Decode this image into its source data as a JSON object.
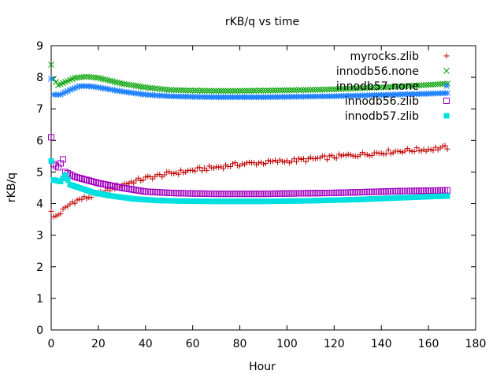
{
  "chart_data": {
    "type": "scatter",
    "title": "rKB/q vs time",
    "xlabel": "Hour",
    "ylabel": "rKB/q",
    "xlim": [
      0,
      180
    ],
    "ylim": [
      0,
      9
    ],
    "xticks": [
      0,
      20,
      40,
      60,
      80,
      100,
      120,
      140,
      160,
      180
    ],
    "yticks": [
      0,
      1,
      2,
      3,
      4,
      5,
      6,
      7,
      8,
      9
    ],
    "grid": false,
    "legend": "top-right",
    "x": {
      "start": 0,
      "end": 168,
      "step": 1
    },
    "series": [
      {
        "name": "myrocks.zlib",
        "marker": "plus",
        "color": "#c00000",
        "keypoints": [
          [
            0,
            3.8
          ],
          [
            1,
            3.55
          ],
          [
            3,
            3.65
          ],
          [
            6,
            3.85
          ],
          [
            9,
            4.05
          ],
          [
            13,
            4.15
          ],
          [
            18,
            4.25
          ],
          [
            25,
            4.45
          ],
          [
            30,
            4.6
          ],
          [
            40,
            4.8
          ],
          [
            50,
            4.95
          ],
          [
            60,
            5.05
          ],
          [
            70,
            5.15
          ],
          [
            80,
            5.25
          ],
          [
            90,
            5.3
          ],
          [
            100,
            5.35
          ],
          [
            110,
            5.4
          ],
          [
            120,
            5.48
          ],
          [
            130,
            5.55
          ],
          [
            140,
            5.62
          ],
          [
            150,
            5.68
          ],
          [
            160,
            5.72
          ],
          [
            168,
            5.78
          ]
        ],
        "noise": 0.07
      },
      {
        "name": "innodb56.none",
        "marker": "cross",
        "color": "#00a000",
        "keypoints": [
          [
            0,
            8.4
          ],
          [
            1,
            7.95
          ],
          [
            3,
            7.75
          ],
          [
            6,
            7.85
          ],
          [
            10,
            7.98
          ],
          [
            15,
            8.02
          ],
          [
            20,
            7.98
          ],
          [
            30,
            7.8
          ],
          [
            40,
            7.68
          ],
          [
            50,
            7.6
          ],
          [
            60,
            7.58
          ],
          [
            70,
            7.57
          ],
          [
            80,
            7.57
          ],
          [
            90,
            7.58
          ],
          [
            100,
            7.59
          ],
          [
            110,
            7.6
          ],
          [
            120,
            7.62
          ],
          [
            130,
            7.65
          ],
          [
            140,
            7.68
          ],
          [
            150,
            7.72
          ],
          [
            160,
            7.76
          ],
          [
            168,
            7.8
          ]
        ],
        "noise": 0.0
      },
      {
        "name": "innodb57.none",
        "marker": "star",
        "color": "#1e80ff",
        "keypoints": [
          [
            0,
            7.95
          ],
          [
            1,
            7.45
          ],
          [
            4,
            7.45
          ],
          [
            8,
            7.6
          ],
          [
            12,
            7.72
          ],
          [
            16,
            7.72
          ],
          [
            20,
            7.68
          ],
          [
            30,
            7.55
          ],
          [
            40,
            7.45
          ],
          [
            50,
            7.4
          ],
          [
            60,
            7.38
          ],
          [
            70,
            7.37
          ],
          [
            80,
            7.37
          ],
          [
            90,
            7.37
          ],
          [
            100,
            7.38
          ],
          [
            110,
            7.39
          ],
          [
            120,
            7.4
          ],
          [
            130,
            7.42
          ],
          [
            140,
            7.44
          ],
          [
            150,
            7.46
          ],
          [
            160,
            7.48
          ],
          [
            168,
            7.5
          ]
        ],
        "noise": 0.0
      },
      {
        "name": "innodb56.zlib",
        "marker": "box",
        "color": "#a000c0",
        "keypoints": [
          [
            0,
            6.1
          ],
          [
            1,
            5.25
          ],
          [
            3,
            5.15
          ],
          [
            5,
            5.4
          ],
          [
            6,
            5.0
          ],
          [
            10,
            4.85
          ],
          [
            15,
            4.75
          ],
          [
            20,
            4.65
          ],
          [
            30,
            4.5
          ],
          [
            40,
            4.38
          ],
          [
            50,
            4.34
          ],
          [
            60,
            4.32
          ],
          [
            70,
            4.31
          ],
          [
            80,
            4.31
          ],
          [
            90,
            4.31
          ],
          [
            100,
            4.32
          ],
          [
            110,
            4.33
          ],
          [
            120,
            4.34
          ],
          [
            130,
            4.36
          ],
          [
            140,
            4.38
          ],
          [
            150,
            4.4
          ],
          [
            160,
            4.41
          ],
          [
            168,
            4.42
          ]
        ],
        "noise": 0.0
      },
      {
        "name": "innodb57.zlib",
        "marker": "filled-box",
        "color": "#00e0e0",
        "keypoints": [
          [
            0,
            5.35
          ],
          [
            1,
            4.75
          ],
          [
            4,
            4.7
          ],
          [
            6,
            4.9
          ],
          [
            8,
            4.6
          ],
          [
            12,
            4.5
          ],
          [
            18,
            4.35
          ],
          [
            25,
            4.25
          ],
          [
            35,
            4.15
          ],
          [
            45,
            4.1
          ],
          [
            55,
            4.08
          ],
          [
            70,
            4.07
          ],
          [
            90,
            4.07
          ],
          [
            100,
            4.08
          ],
          [
            110,
            4.09
          ],
          [
            120,
            4.11
          ],
          [
            130,
            4.13
          ],
          [
            140,
            4.16
          ],
          [
            150,
            4.19
          ],
          [
            160,
            4.22
          ],
          [
            168,
            4.24
          ]
        ],
        "noise": 0.0
      }
    ]
  }
}
